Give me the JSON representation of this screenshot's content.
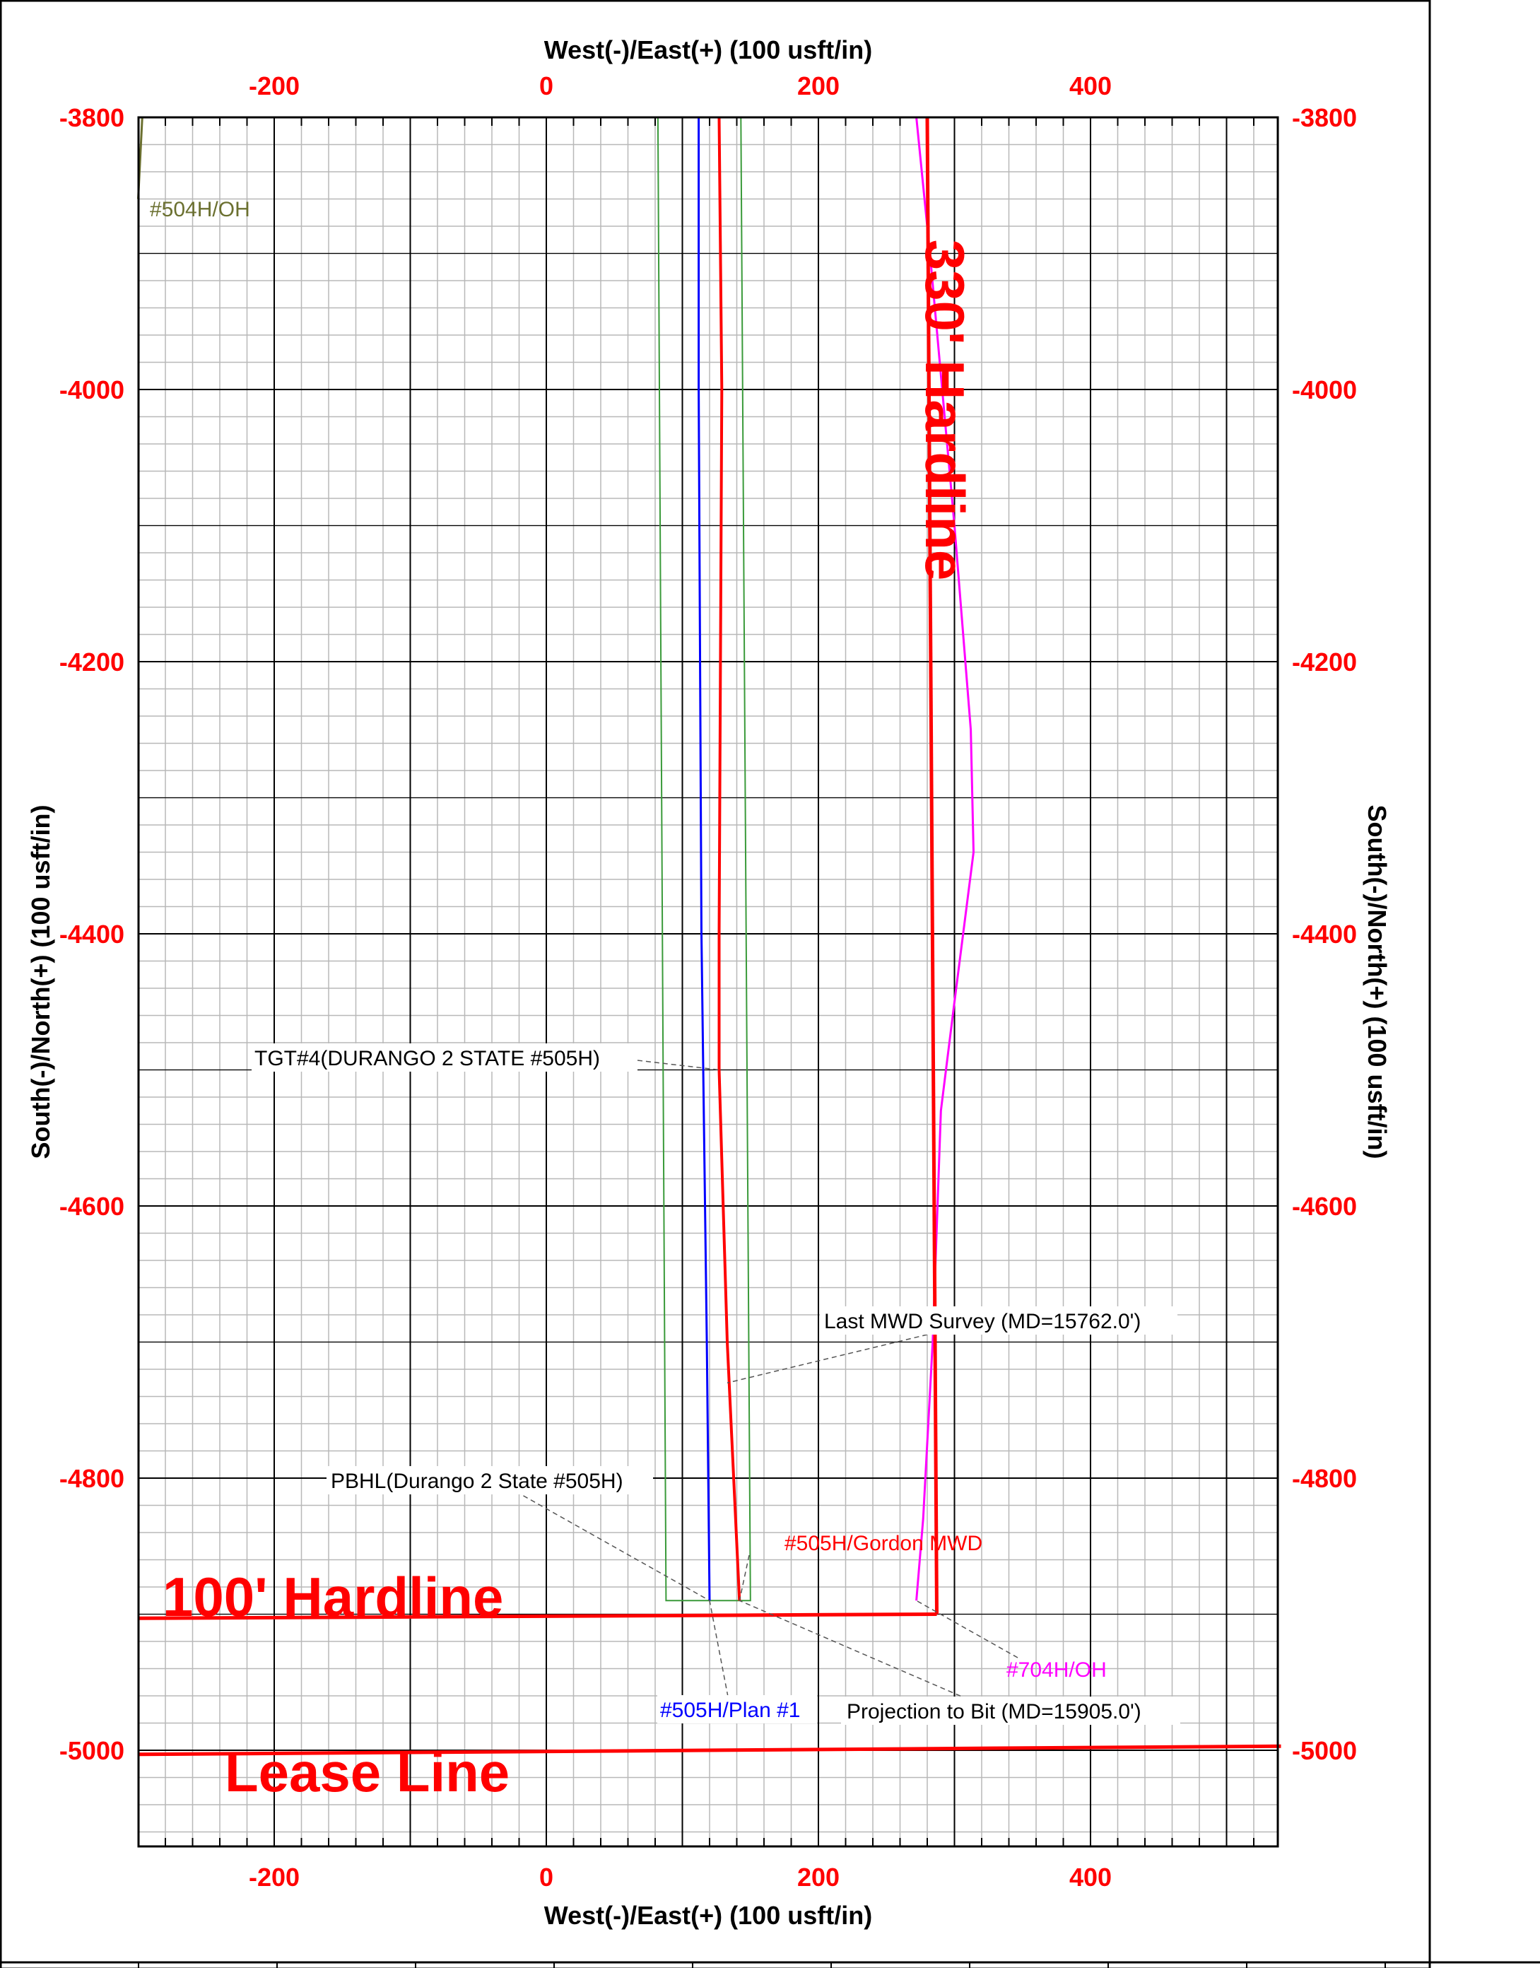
{
  "chart_data": {
    "type": "line",
    "title": "",
    "xlabel": "West(-)/East(+) (100 usft/in)",
    "ylabel": "South(-)/North(+) (100 usft/in)",
    "xlim": [
      -300,
      540
    ],
    "ylim": [
      -5065,
      -3800
    ],
    "x_ticks": [
      -200,
      0,
      200,
      400
    ],
    "y_ticks": [
      -3800,
      -4000,
      -4200,
      -4400,
      -4600,
      -4800,
      -5000
    ],
    "grid": true,
    "tick_color": "#ff0000",
    "label_color": "#000000",
    "series": [
      {
        "name": "#505H/Plan #1",
        "color": "#0000ff",
        "width": 2,
        "points": [
          [
            112,
            -3800
          ],
          [
            112,
            -4000
          ],
          [
            114,
            -4400
          ],
          [
            118,
            -4700
          ],
          [
            120,
            -4890
          ]
        ]
      },
      {
        "name": "#505H/Gordon MWD",
        "color": "#ff0000",
        "width": 3,
        "points": [
          [
            127,
            -3800
          ],
          [
            129,
            -4000
          ],
          [
            128,
            -4200
          ],
          [
            127,
            -4400
          ],
          [
            127,
            -4500
          ],
          [
            133,
            -4700
          ],
          [
            142,
            -4890
          ]
        ]
      },
      {
        "name": "#704H/OH",
        "color": "#ff00ff",
        "width": 2,
        "points": [
          [
            272,
            -3800
          ],
          [
            282,
            -3900
          ],
          [
            300,
            -4100
          ],
          [
            312,
            -4250
          ],
          [
            314,
            -4340
          ],
          [
            300,
            -4450
          ],
          [
            290,
            -4530
          ],
          [
            284,
            -4700
          ],
          [
            277,
            -4830
          ],
          [
            272,
            -4890
          ]
        ]
      },
      {
        "name": "#504H/OH",
        "color": "#6b7030",
        "width": 2,
        "points": [
          [
            -297,
            -3800
          ],
          [
            -300,
            -3860
          ]
        ]
      }
    ],
    "target_box": {
      "color": "#3a9a3a",
      "points": [
        [
          82,
          -3800
        ],
        [
          88,
          -4890
        ],
        [
          150,
          -4890
        ],
        [
          143,
          -3800
        ]
      ]
    },
    "hardlines": [
      {
        "label": "330' Hardline",
        "color": "#ff0000",
        "points": [
          [
            280,
            -3800
          ],
          [
            287,
            -4900
          ]
        ]
      },
      {
        "label": "100' Hardline",
        "color": "#ff0000",
        "points": [
          [
            -300,
            -4903
          ],
          [
            287,
            -4900
          ]
        ]
      },
      {
        "label": "Lease Line",
        "color": "#ff0000",
        "points": [
          [
            -300,
            -5003
          ],
          [
            540,
            -4997
          ]
        ]
      }
    ],
    "annotations": [
      {
        "text": "#504H/OH",
        "color": "#6b7030"
      },
      {
        "text": "TGT#4(DURANGO 2 STATE #505H)",
        "color": "#000000",
        "target": [
          127,
          -4500
        ]
      },
      {
        "text": "Last MWD Survey (MD=15762.0')",
        "color": "#000000",
        "target": [
          133,
          -4730
        ]
      },
      {
        "text": "PBHL(Durango 2 State #505H)",
        "color": "#000000",
        "target": [
          120,
          -4890
        ]
      },
      {
        "text": "#505H/Gordon MWD",
        "color": "#ff0000",
        "target": [
          142,
          -4890
        ]
      },
      {
        "text": "#704H/OH",
        "color": "#ff00ff",
        "target": [
          272,
          -4890
        ]
      },
      {
        "text": "#505H/Plan #1",
        "color": "#0000ff",
        "target": [
          120,
          -4890
        ]
      },
      {
        "text": "Projection to Bit  (MD=15905.0')",
        "color": "#000000",
        "target": [
          142,
          -4890
        ]
      }
    ]
  }
}
